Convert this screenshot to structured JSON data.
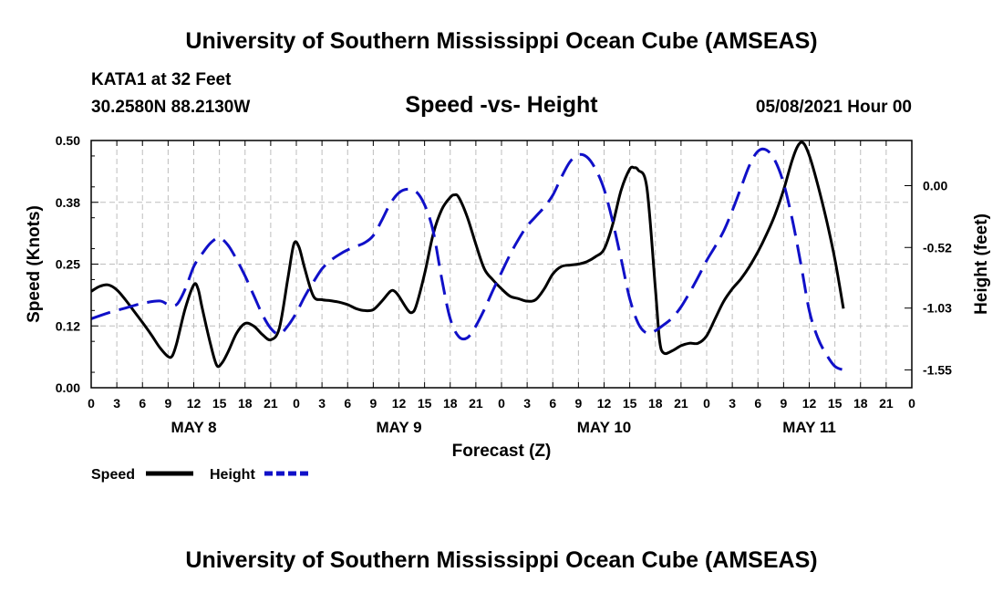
{
  "header": {
    "title": "University of Southern Mississippi Ocean Cube (AMSEAS)",
    "station": "KATA1 at 32 Feet",
    "coords": "30.2580N  88.2130W",
    "chart_title": "Speed -vs- Height",
    "datetime": "05/08/2021 Hour 00"
  },
  "footer": {
    "title": "University of Southern Mississippi Ocean Cube (AMSEAS)"
  },
  "colors": {
    "speed": "#000000",
    "height": "#1010c8",
    "grid": "#bdbdbd"
  },
  "chart_data": {
    "type": "line",
    "title": "Speed -vs- Height",
    "xlabel": "Forecast (Z)",
    "ylabel": "Speed (Knots)",
    "y2label": "Height (feet)",
    "x_range": [
      0,
      96
    ],
    "x_tick_labels": [
      "0",
      "3",
      "6",
      "9",
      "12",
      "15",
      "18",
      "21",
      "0",
      "3",
      "6",
      "9",
      "12",
      "15",
      "18",
      "21",
      "0",
      "3",
      "6",
      "9",
      "12",
      "15",
      "18",
      "21",
      "0",
      "3",
      "6",
      "9",
      "12",
      "15",
      "18",
      "21",
      "0"
    ],
    "day_labels": [
      {
        "label": "MAY 8",
        "hour": 12
      },
      {
        "label": "MAY 9",
        "hour": 36
      },
      {
        "label": "MAY 10",
        "hour": 60
      },
      {
        "label": "MAY 11",
        "hour": 84
      }
    ],
    "ylim": [
      0,
      0.5
    ],
    "y_ticks": [
      0.0,
      0.125,
      0.25,
      0.375,
      0.5
    ],
    "y_tick_labels": [
      "0.00",
      "0.12",
      "0.25",
      "0.38",
      "0.50"
    ],
    "y2lim": [
      -1.7,
      0.38
    ],
    "y2_ticks": [
      0.0,
      -0.52,
      -1.03,
      -1.55
    ],
    "y2_tick_labels": [
      "0.00",
      "-0.52",
      "-1.03",
      "-1.55"
    ],
    "series": [
      {
        "name": "Speed",
        "axis": "left",
        "style": "solid",
        "points": [
          [
            0,
            0.195
          ],
          [
            1,
            0.205
          ],
          [
            2,
            0.208
          ],
          [
            3,
            0.198
          ],
          [
            4,
            0.178
          ],
          [
            5,
            0.155
          ],
          [
            6,
            0.132
          ],
          [
            7,
            0.108
          ],
          [
            8,
            0.082
          ],
          [
            9,
            0.063
          ],
          [
            9.5,
            0.065
          ],
          [
            10,
            0.09
          ],
          [
            11,
            0.16
          ],
          [
            12,
            0.208
          ],
          [
            12.5,
            0.2
          ],
          [
            13,
            0.16
          ],
          [
            14,
            0.085
          ],
          [
            14.7,
            0.045
          ],
          [
            15.3,
            0.05
          ],
          [
            16,
            0.072
          ],
          [
            17,
            0.11
          ],
          [
            18,
            0.13
          ],
          [
            19,
            0.125
          ],
          [
            20,
            0.108
          ],
          [
            21,
            0.097
          ],
          [
            22,
            0.12
          ],
          [
            23,
            0.22
          ],
          [
            23.7,
            0.29
          ],
          [
            24.3,
            0.285
          ],
          [
            25,
            0.24
          ],
          [
            26,
            0.185
          ],
          [
            27,
            0.178
          ],
          [
            28,
            0.176
          ],
          [
            29,
            0.173
          ],
          [
            30,
            0.168
          ],
          [
            31,
            0.16
          ],
          [
            32,
            0.156
          ],
          [
            33,
            0.158
          ],
          [
            34,
            0.175
          ],
          [
            35,
            0.195
          ],
          [
            35.5,
            0.195
          ],
          [
            36,
            0.185
          ],
          [
            37,
            0.158
          ],
          [
            37.5,
            0.152
          ],
          [
            38,
            0.165
          ],
          [
            39,
            0.23
          ],
          [
            40,
            0.31
          ],
          [
            41,
            0.36
          ],
          [
            42,
            0.385
          ],
          [
            42.5,
            0.39
          ],
          [
            43,
            0.385
          ],
          [
            44,
            0.345
          ],
          [
            45,
            0.29
          ],
          [
            46,
            0.24
          ],
          [
            47,
            0.218
          ],
          [
            48,
            0.2
          ],
          [
            49,
            0.185
          ],
          [
            50,
            0.18
          ],
          [
            51,
            0.175
          ],
          [
            52,
            0.178
          ],
          [
            53,
            0.2
          ],
          [
            54,
            0.23
          ],
          [
            55,
            0.245
          ],
          [
            56,
            0.248
          ],
          [
            57,
            0.25
          ],
          [
            58,
            0.255
          ],
          [
            59,
            0.265
          ],
          [
            60,
            0.28
          ],
          [
            61,
            0.33
          ],
          [
            62,
            0.4
          ],
          [
            63,
            0.442
          ],
          [
            63.5,
            0.445
          ],
          [
            64,
            0.44
          ],
          [
            65,
            0.405
          ],
          [
            66,
            0.2
          ],
          [
            66.5,
            0.095
          ],
          [
            67,
            0.07
          ],
          [
            68,
            0.075
          ],
          [
            69,
            0.085
          ],
          [
            70,
            0.09
          ],
          [
            71,
            0.09
          ],
          [
            72,
            0.105
          ],
          [
            73,
            0.14
          ],
          [
            74,
            0.175
          ],
          [
            75,
            0.2
          ],
          [
            76,
            0.22
          ],
          [
            77,
            0.245
          ],
          [
            78,
            0.275
          ],
          [
            79,
            0.31
          ],
          [
            80,
            0.35
          ],
          [
            81,
            0.4
          ],
          [
            82,
            0.46
          ],
          [
            82.7,
            0.49
          ],
          [
            83.3,
            0.495
          ],
          [
            84,
            0.47
          ],
          [
            85,
            0.41
          ],
          [
            86,
            0.34
          ],
          [
            87,
            0.26
          ],
          [
            88,
            0.16
          ]
        ]
      },
      {
        "name": "Height",
        "axis": "right",
        "style": "dashed",
        "points": [
          [
            0,
            -1.12
          ],
          [
            2,
            -1.07
          ],
          [
            4,
            -1.03
          ],
          [
            6,
            -0.99
          ],
          [
            8,
            -0.97
          ],
          [
            9,
            -1.0
          ],
          [
            10,
            -1.0
          ],
          [
            11,
            -0.87
          ],
          [
            12,
            -0.68
          ],
          [
            13,
            -0.57
          ],
          [
            14,
            -0.48
          ],
          [
            15,
            -0.44
          ],
          [
            16,
            -0.5
          ],
          [
            17,
            -0.62
          ],
          [
            18,
            -0.76
          ],
          [
            19,
            -0.92
          ],
          [
            20,
            -1.08
          ],
          [
            21,
            -1.2
          ],
          [
            22,
            -1.25
          ],
          [
            23,
            -1.18
          ],
          [
            24,
            -1.07
          ],
          [
            25,
            -0.93
          ],
          [
            26,
            -0.81
          ],
          [
            27,
            -0.7
          ],
          [
            28,
            -0.63
          ],
          [
            29,
            -0.58
          ],
          [
            30,
            -0.54
          ],
          [
            31,
            -0.51
          ],
          [
            32,
            -0.48
          ],
          [
            33,
            -0.42
          ],
          [
            34,
            -0.29
          ],
          [
            35,
            -0.15
          ],
          [
            36,
            -0.06
          ],
          [
            37,
            -0.03
          ],
          [
            38,
            -0.05
          ],
          [
            39,
            -0.16
          ],
          [
            40,
            -0.38
          ],
          [
            41,
            -0.78
          ],
          [
            42,
            -1.12
          ],
          [
            43,
            -1.27
          ],
          [
            44,
            -1.28
          ],
          [
            45,
            -1.18
          ],
          [
            46,
            -1.04
          ],
          [
            47,
            -0.88
          ],
          [
            48,
            -0.73
          ],
          [
            49,
            -0.58
          ],
          [
            50,
            -0.45
          ],
          [
            51,
            -0.34
          ],
          [
            52,
            -0.26
          ],
          [
            53,
            -0.18
          ],
          [
            54,
            -0.08
          ],
          [
            55,
            0.07
          ],
          [
            56,
            0.2
          ],
          [
            57,
            0.26
          ],
          [
            58,
            0.24
          ],
          [
            59,
            0.14
          ],
          [
            60,
            -0.03
          ],
          [
            61,
            -0.3
          ],
          [
            62,
            -0.62
          ],
          [
            63,
            -0.95
          ],
          [
            64,
            -1.16
          ],
          [
            65,
            -1.24
          ],
          [
            66,
            -1.22
          ],
          [
            67,
            -1.17
          ],
          [
            68,
            -1.11
          ],
          [
            69,
            -1.02
          ],
          [
            70,
            -0.9
          ],
          [
            71,
            -0.77
          ],
          [
            72,
            -0.63
          ],
          [
            73,
            -0.51
          ],
          [
            74,
            -0.38
          ],
          [
            75,
            -0.21
          ],
          [
            76,
            -0.02
          ],
          [
            77,
            0.17
          ],
          [
            78,
            0.29
          ],
          [
            79,
            0.3
          ],
          [
            80,
            0.21
          ],
          [
            81,
            0.02
          ],
          [
            82,
            -0.28
          ],
          [
            83,
            -0.65
          ],
          [
            84,
            -1.05
          ],
          [
            85,
            -1.28
          ],
          [
            86,
            -1.42
          ],
          [
            87,
            -1.52
          ],
          [
            88,
            -1.55
          ]
        ]
      }
    ],
    "legend": [
      {
        "label": "Speed",
        "style": "solid"
      },
      {
        "label": "Height",
        "style": "dashed"
      }
    ],
    "grid": true,
    "legend_position": "bottom-left"
  }
}
